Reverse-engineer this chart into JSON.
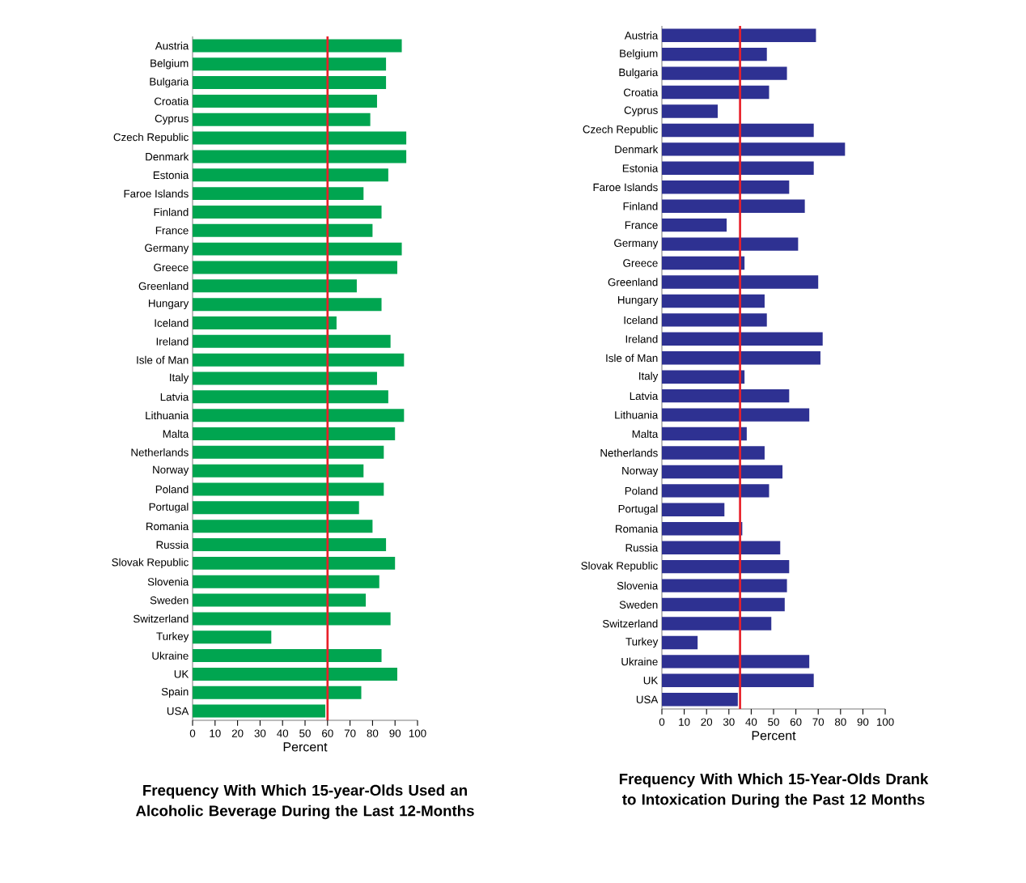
{
  "chart_data": [
    {
      "type": "bar",
      "orientation": "horizontal",
      "title": "Frequency With Which 15-year-Olds Used an Alcoholic Beverage During the Last 12-Months",
      "xlabel": "Percent",
      "categories": [
        "Austria",
        "Belgium",
        "Bulgaria",
        "Croatia",
        "Cyprus",
        "Czech Republic",
        "Denmark",
        "Estonia",
        "Faroe Islands",
        "Finland",
        "France",
        "Germany",
        "Greece",
        "Greenland",
        "Hungary",
        "Iceland",
        "Ireland",
        "Isle of Man",
        "Italy",
        "Latvia",
        "Lithuania",
        "Malta",
        "Netherlands",
        "Norway",
        "Poland",
        "Portugal",
        "Romania",
        "Russia",
        "Slovak Republic",
        "Slovenia",
        "Sweden",
        "Switzerland",
        "Turkey",
        "Ukraine",
        "UK",
        "Spain",
        "USA"
      ],
      "values": [
        93,
        86,
        86,
        82,
        79,
        95,
        95,
        87,
        76,
        84,
        80,
        93,
        91,
        73,
        84,
        64,
        88,
        94,
        82,
        87,
        94,
        90,
        85,
        76,
        85,
        74,
        80,
        86,
        90,
        83,
        77,
        88,
        35,
        84,
        91,
        75,
        59
      ],
      "color": "#00a550",
      "xlim": [
        0,
        100
      ],
      "xticks": [
        0,
        10,
        20,
        30,
        40,
        50,
        60,
        70,
        80,
        90,
        100
      ],
      "ref_lines": [
        {
          "axis": "x",
          "value": 60,
          "color": "#e8202a"
        }
      ]
    },
    {
      "type": "bar",
      "orientation": "horizontal",
      "title": "Frequency With Which 15-Year-Olds Drank to Intoxication During the Past 12 Months",
      "xlabel": "Percent",
      "categories": [
        "Austria",
        "Belgium",
        "Bulgaria",
        "Croatia",
        "Cyprus",
        "Czech Republic",
        "Denmark",
        "Estonia",
        "Faroe Islands",
        "Finland",
        "France",
        "Germany",
        "Greece",
        "Greenland",
        "Hungary",
        "Iceland",
        "Ireland",
        "Isle of Man",
        "Italy",
        "Latvia",
        "Lithuania",
        "Malta",
        "Netherlands",
        "Norway",
        "Poland",
        "Portugal",
        "Romania",
        "Russia",
        "Slovak Republic",
        "Slovenia",
        "Sweden",
        "Switzerland",
        "Turkey",
        "Ukraine",
        "UK",
        "USA"
      ],
      "values": [
        69,
        47,
        56,
        48,
        25,
        68,
        82,
        68,
        57,
        64,
        29,
        61,
        37,
        70,
        46,
        47,
        72,
        71,
        37,
        57,
        66,
        38,
        46,
        54,
        48,
        28,
        36,
        53,
        57,
        56,
        55,
        49,
        16,
        66,
        68,
        34
      ],
      "color": "#2e3192",
      "xlim": [
        0,
        100
      ],
      "xticks": [
        0,
        10,
        20,
        30,
        40,
        50,
        60,
        70,
        80,
        90,
        100
      ],
      "ref_lines": [
        {
          "axis": "x",
          "value": 35,
          "color": "#e8202a"
        }
      ]
    }
  ]
}
